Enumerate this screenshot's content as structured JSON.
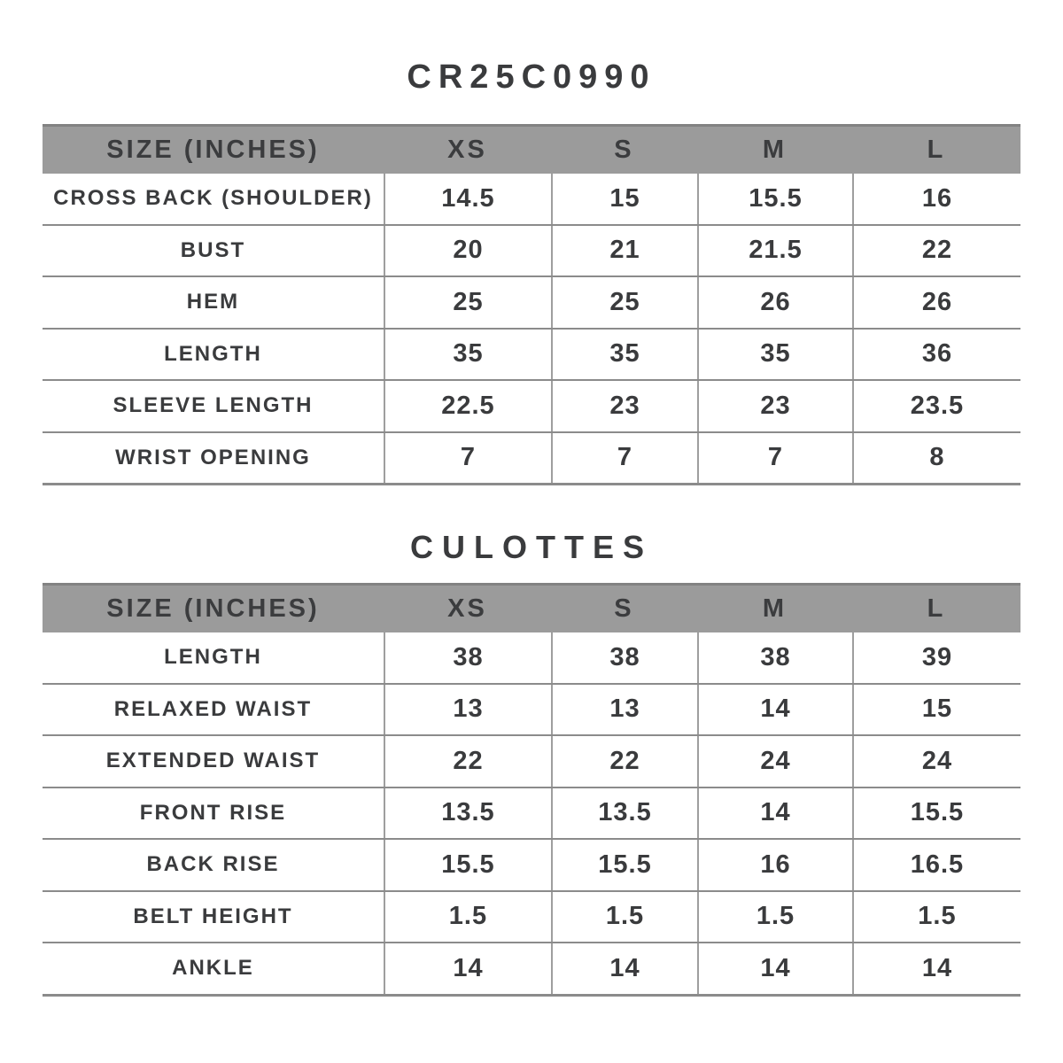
{
  "colors": {
    "background": "#ffffff",
    "header_bg": "#9b9b9b",
    "header_top_edge": "#828282",
    "text": "#3a3b3d",
    "row_line": "#8b8b8b",
    "col_line": "#9e9e9e"
  },
  "sections": [
    {
      "heading": "CR25C0990",
      "table": {
        "columns": [
          "SIZE (INCHES)",
          "XS",
          "S",
          "M",
          "L"
        ],
        "rows": [
          {
            "label": "CROSS BACK (SHOULDER)",
            "values": [
              "14.5",
              "15",
              "15.5",
              "16"
            ]
          },
          {
            "label": "BUST",
            "values": [
              "20",
              "21",
              "21.5",
              "22"
            ]
          },
          {
            "label": "HEM",
            "values": [
              "25",
              "25",
              "26",
              "26"
            ]
          },
          {
            "label": "LENGTH",
            "values": [
              "35",
              "35",
              "35",
              "36"
            ]
          },
          {
            "label": "SLEEVE LENGTH",
            "values": [
              "22.5",
              "23",
              "23",
              "23.5"
            ]
          },
          {
            "label": "WRIST OPENING",
            "values": [
              "7",
              "7",
              "7",
              "8"
            ]
          }
        ]
      }
    },
    {
      "heading": "CULOTTES",
      "table": {
        "columns": [
          "SIZE (INCHES)",
          "XS",
          "S",
          "M",
          "L"
        ],
        "rows": [
          {
            "label": "LENGTH",
            "values": [
              "38",
              "38",
              "38",
              "39"
            ]
          },
          {
            "label": "RELAXED WAIST",
            "values": [
              "13",
              "13",
              "14",
              "15"
            ]
          },
          {
            "label": "EXTENDED WAIST",
            "values": [
              "22",
              "22",
              "24",
              "24"
            ]
          },
          {
            "label": "FRONT RISE",
            "values": [
              "13.5",
              "13.5",
              "14",
              "15.5"
            ]
          },
          {
            "label": "BACK RISE",
            "values": [
              "15.5",
              "15.5",
              "16",
              "16.5"
            ]
          },
          {
            "label": "BELT HEIGHT",
            "values": [
              "1.5",
              "1.5",
              "1.5",
              "1.5"
            ]
          },
          {
            "label": "ANKLE",
            "values": [
              "14",
              "14",
              "14",
              "14"
            ]
          }
        ]
      }
    }
  ]
}
